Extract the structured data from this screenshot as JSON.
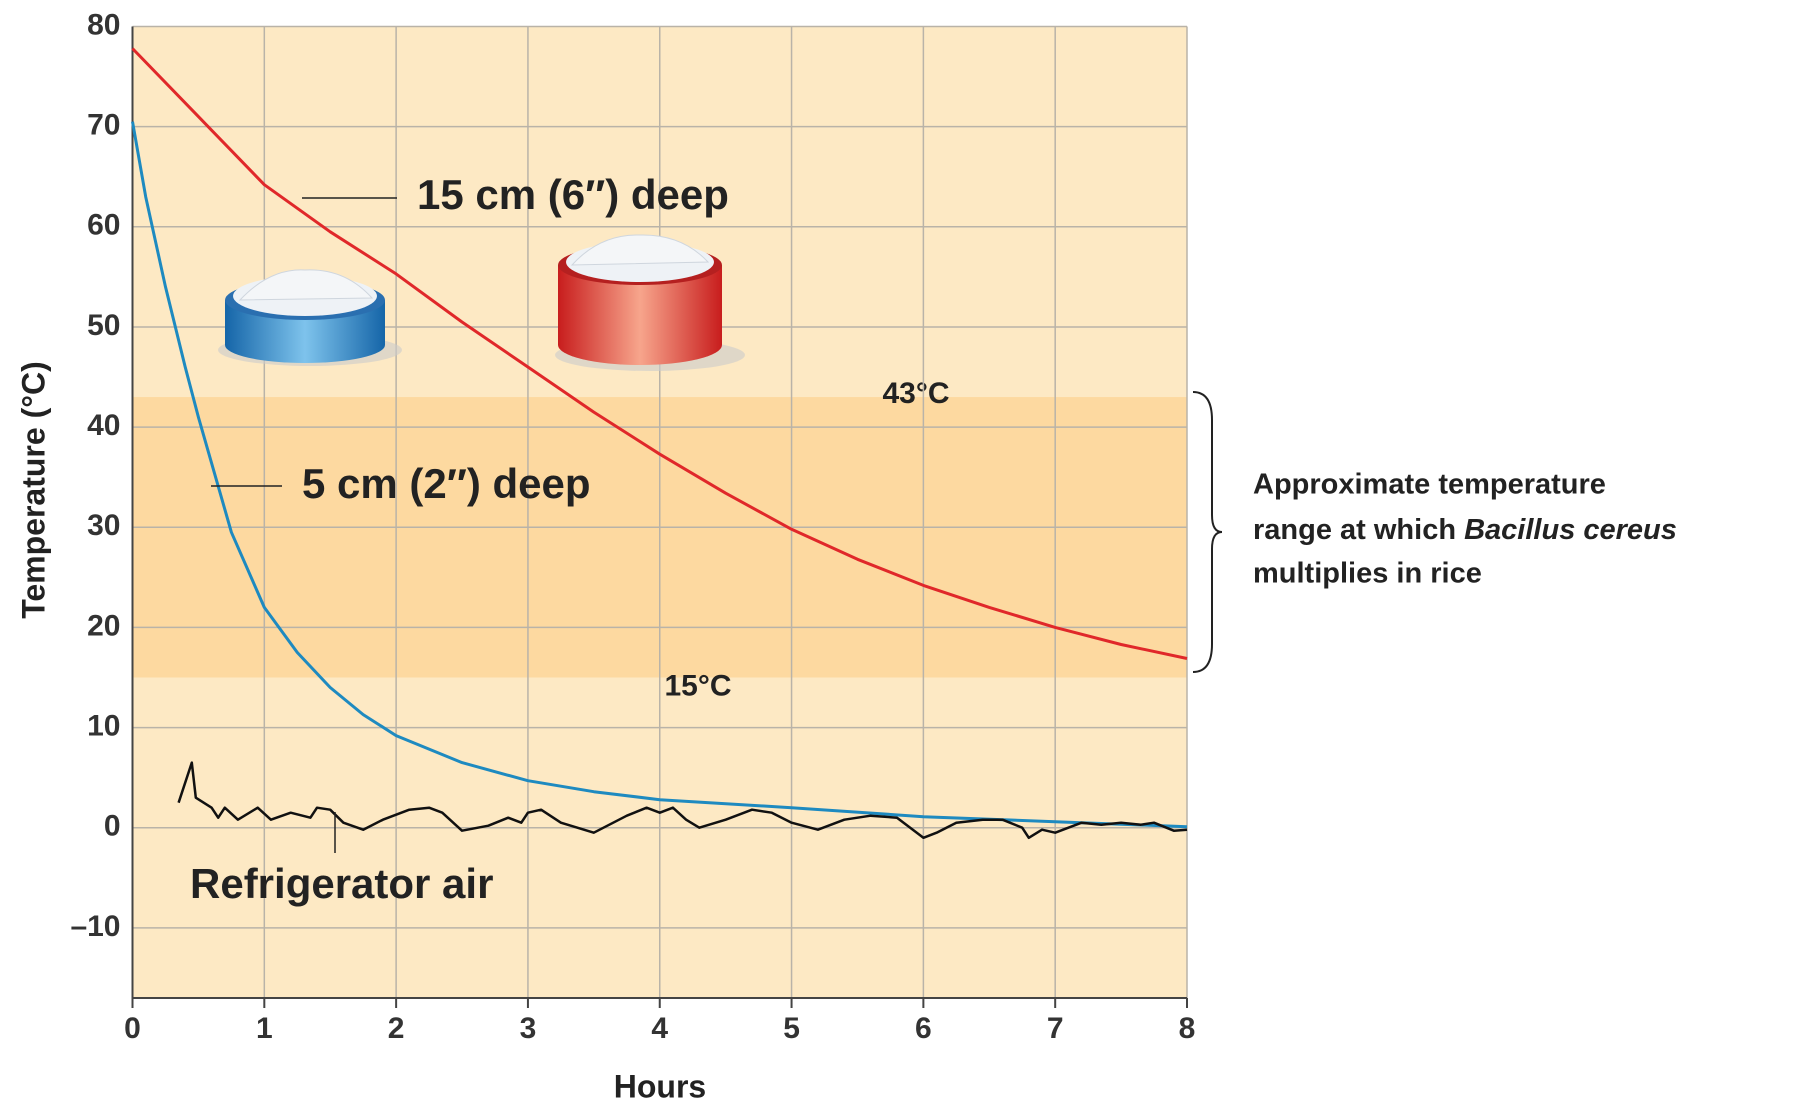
{
  "chart_data": {
    "type": "line",
    "x_label": "Hours",
    "y_label": "Temperature (°C)",
    "xlim": [
      0,
      8
    ],
    "xticks": [
      0,
      1,
      2,
      3,
      4,
      5,
      6,
      7,
      8
    ],
    "ylim": [
      -17,
      80
    ],
    "yticks": [
      {
        "value": -10,
        "label": "–10"
      },
      0,
      10,
      20,
      30,
      40,
      50,
      60,
      70,
      80
    ],
    "grid": true,
    "band": {
      "range": [
        15,
        43
      ],
      "color": "#fdd9a0",
      "top_label": "43°C",
      "bottom_label": "15°C"
    },
    "annotation": [
      "Approximate temperature",
      "range at which ",
      "Bacillus cereus",
      "multiplies in rice"
    ],
    "series": [
      {
        "name": "15 cm (6″) deep",
        "color": "#e0282a",
        "x": [
          0,
          0.5,
          1,
          1.5,
          2,
          2.5,
          3,
          3.5,
          4,
          4.5,
          5,
          5.5,
          6,
          6.5,
          7,
          7.5,
          8
        ],
        "values": [
          77.8,
          71,
          64.2,
          59.5,
          55.3,
          50.5,
          46,
          41.5,
          37.3,
          33.4,
          29.8,
          26.8,
          24.2,
          22,
          20,
          18.3,
          16.9
        ]
      },
      {
        "name": "5 cm (2″) deep",
        "color": "#1e8ac0",
        "x": [
          0,
          0.1,
          0.25,
          0.4,
          0.5,
          0.75,
          1,
          1.25,
          1.5,
          1.75,
          2,
          2.5,
          3,
          3.5,
          4,
          5,
          6,
          7,
          8
        ],
        "values": [
          70.5,
          63,
          54,
          46,
          41,
          29.5,
          22,
          17.5,
          14,
          11.3,
          9.2,
          6.5,
          4.7,
          3.6,
          2.8,
          2,
          1.1,
          0.6,
          0.1
        ]
      },
      {
        "name": "Refrigerator air",
        "color": "#111111",
        "x": [
          0.35,
          0.45,
          0.48,
          0.6,
          0.65,
          0.7,
          0.8,
          0.95,
          1.05,
          1.2,
          1.35,
          1.4,
          1.5,
          1.6,
          1.75,
          1.9,
          2.1,
          2.25,
          2.35,
          2.5,
          2.7,
          2.85,
          2.95,
          3.0,
          3.1,
          3.25,
          3.5,
          3.75,
          3.9,
          4.0,
          4.1,
          4.2,
          4.3,
          4.5,
          4.7,
          4.85,
          5.0,
          5.2,
          5.4,
          5.6,
          5.8,
          6.0,
          6.1,
          6.25,
          6.45,
          6.6,
          6.75,
          6.8,
          6.9,
          7.0,
          7.1,
          7.2,
          7.35,
          7.5,
          7.65,
          7.75,
          7.9,
          8.0
        ],
        "values": [
          2.5,
          6.5,
          3,
          2,
          1,
          2,
          0.8,
          2,
          0.8,
          1.5,
          1,
          2,
          1.8,
          0.5,
          -0.2,
          0.8,
          1.8,
          2,
          1.5,
          -0.3,
          0.2,
          1,
          0.5,
          1.5,
          1.8,
          0.5,
          -0.5,
          1.2,
          2,
          1.5,
          2,
          0.8,
          0,
          0.8,
          1.8,
          1.5,
          0.5,
          -0.2,
          0.8,
          1.2,
          1,
          -1,
          -0.5,
          0.5,
          0.8,
          0.8,
          0,
          -1,
          -0.2,
          -0.5,
          0,
          0.5,
          0.3,
          0.5,
          0.3,
          0.5,
          -0.3,
          -0.2
        ]
      }
    ]
  }
}
